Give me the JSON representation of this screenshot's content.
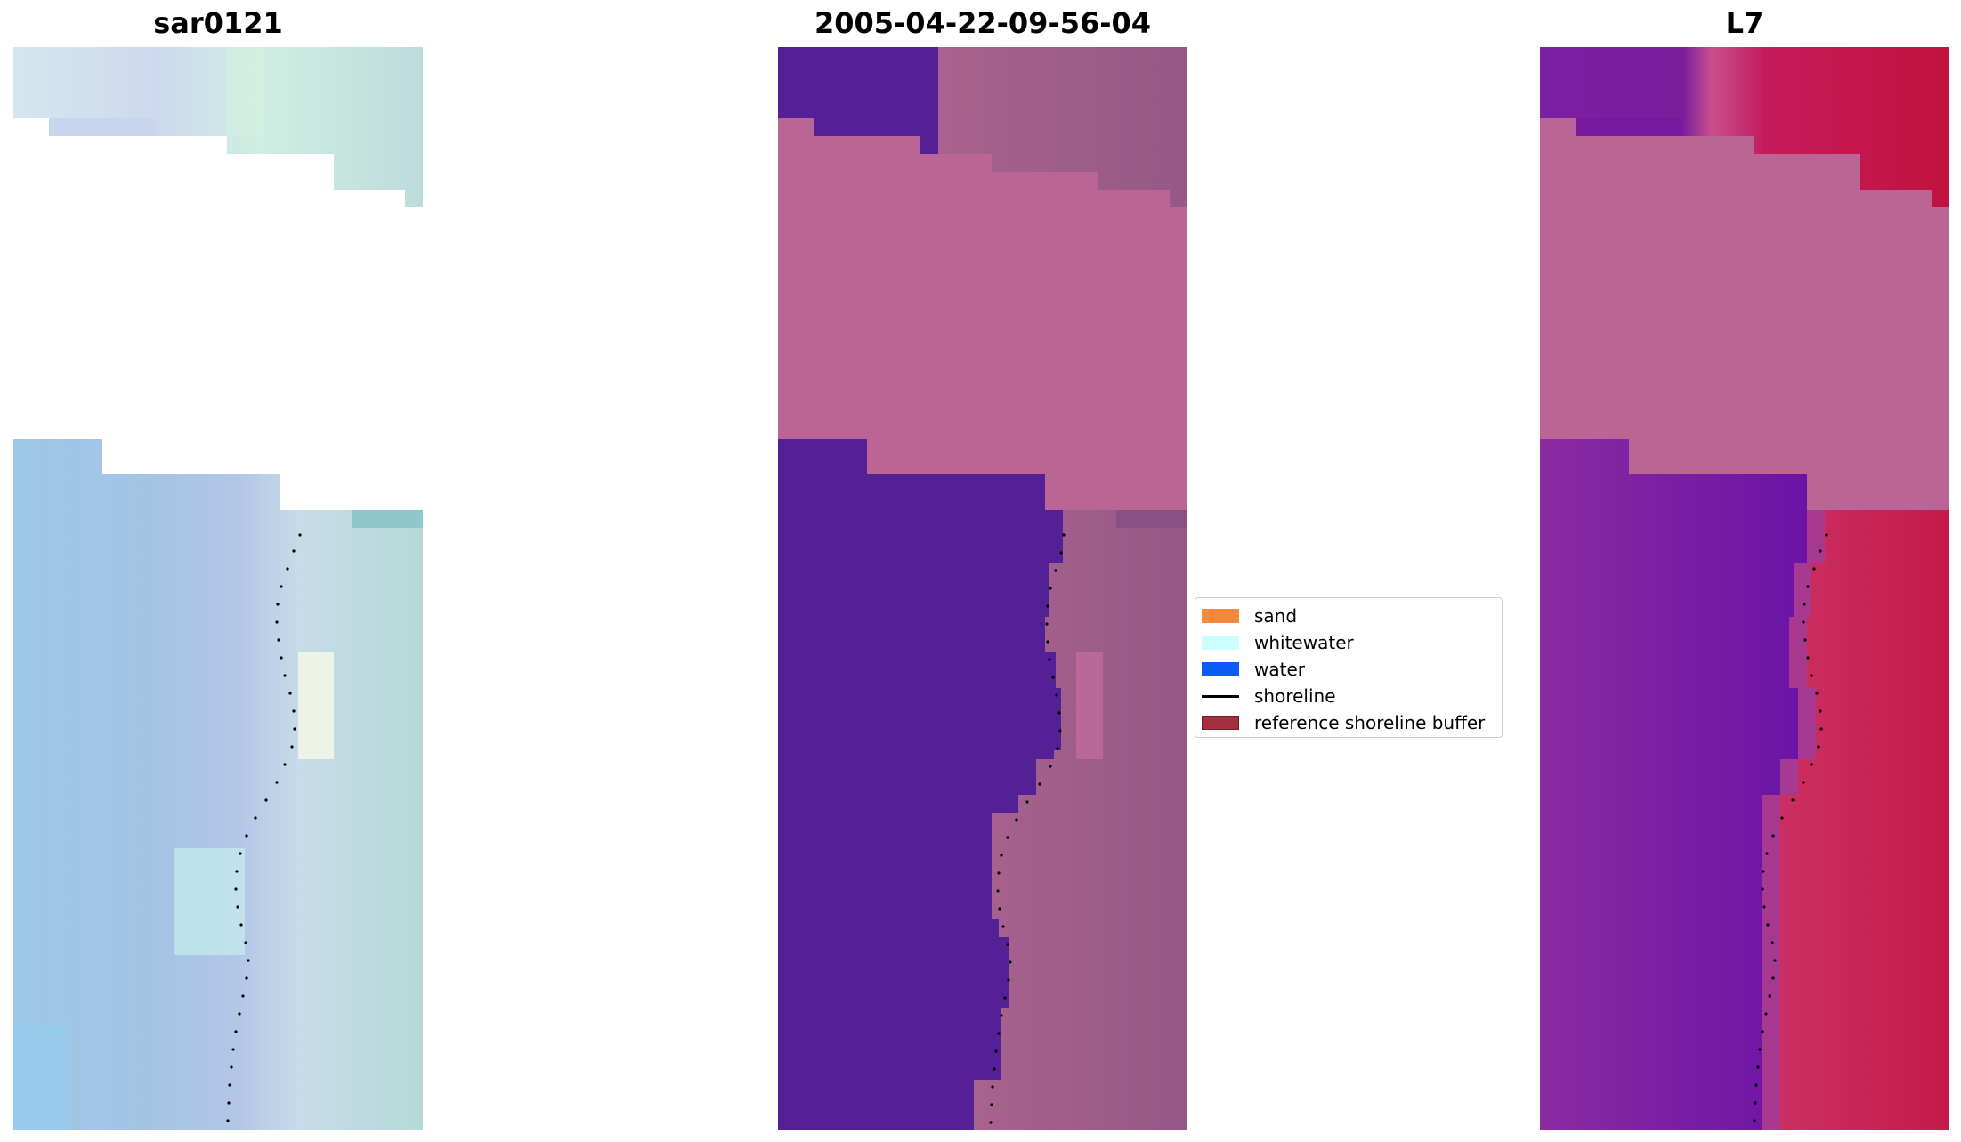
{
  "panels": [
    {
      "title": "sar0121"
    },
    {
      "title": "2005-04-22-09-56-04"
    },
    {
      "title": "L7"
    }
  ],
  "legend": {
    "items": [
      {
        "label": "sand",
        "type": "patch",
        "color": "#f4893d"
      },
      {
        "label": "whitewater",
        "type": "patch",
        "color": "#ccfffd"
      },
      {
        "label": "water",
        "type": "patch",
        "color": "#0a5cf5"
      },
      {
        "label": "shoreline",
        "type": "line",
        "color": "#000000"
      },
      {
        "label": "reference shoreline buffer",
        "type": "patch",
        "color": "#a3303f",
        "edge": "#6e1f2a"
      }
    ]
  },
  "colors": {
    "background": "#ffffff",
    "classified_land": "#bb6597",
    "classified_water": "#532195",
    "rgb_base": "#b3d1e2",
    "ndwi_water": "#7620a0",
    "ndwi_land": "#c0164a",
    "shoreline_points": "#000000"
  }
}
